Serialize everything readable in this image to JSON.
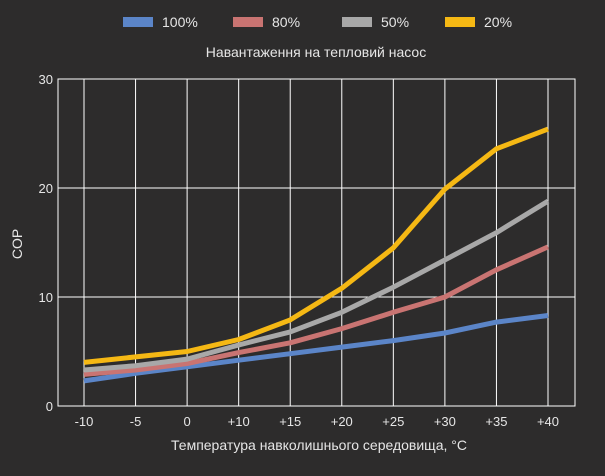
{
  "chart_data": {
    "type": "line",
    "title": "Навантаження на тепловий насос",
    "xlabel": "Температура навколишнього середовища, °C",
    "ylabel": "COP",
    "x": [
      "-10",
      "-5",
      "0",
      "+10",
      "+15",
      "+20",
      "+25",
      "+30",
      "+35",
      "+40"
    ],
    "ylim": [
      0,
      30
    ],
    "yticks": [
      0,
      10,
      20,
      30
    ],
    "grid": true,
    "legend_position": "top",
    "series": [
      {
        "name": "100%",
        "color": "#5b85c8",
        "values": [
          2.3,
          3.0,
          3.6,
          4.2,
          4.8,
          5.4,
          6.0,
          6.7,
          7.7,
          8.3
        ]
      },
      {
        "name": "80%",
        "color": "#c97472",
        "values": [
          2.9,
          3.3,
          3.9,
          4.9,
          5.8,
          7.1,
          8.6,
          10.0,
          12.5,
          14.6
        ]
      },
      {
        "name": "50%",
        "color": "#a8a8a8",
        "values": [
          3.3,
          3.7,
          4.3,
          5.6,
          6.8,
          8.6,
          10.9,
          13.4,
          15.9,
          18.8
        ]
      },
      {
        "name": "20%",
        "color": "#f5b814",
        "values": [
          4.0,
          4.5,
          5.0,
          6.1,
          7.9,
          10.8,
          14.5,
          19.9,
          23.6,
          25.4
        ]
      }
    ]
  }
}
